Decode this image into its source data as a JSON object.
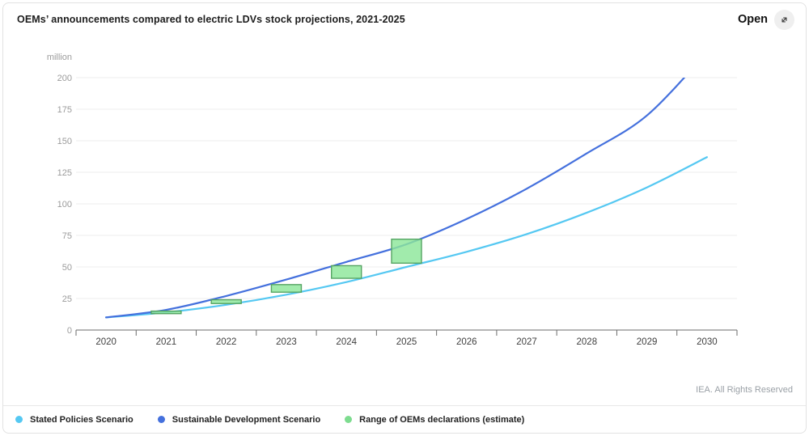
{
  "header": {
    "title": "OEMs’ announcements compared to electric LDVs stock projections, 2021-2025",
    "open_label": "Open",
    "open_icon": "expand-icon"
  },
  "footer": {
    "copyright": "IEA. All Rights Reserved"
  },
  "chart_data": {
    "type": "line",
    "title": "OEMs’ announcements compared to electric LDVs stock projections, 2021-2025",
    "unit_label": "million",
    "categories": [
      "2020",
      "2021",
      "2022",
      "2023",
      "2024",
      "2025",
      "2026",
      "2027",
      "2028",
      "2029",
      "2030"
    ],
    "ylim": [
      0,
      200
    ],
    "y_step": 25,
    "grid": "horizontal",
    "legend_position": "bottom",
    "axis_note": "Sustainable Development Scenario line is clipped at the 200 million axis maximum (reached between 2029 and 2030)",
    "series": [
      {
        "name": "Stated Policies Scenario",
        "color": "#55c8f2",
        "values": [
          10,
          14,
          20,
          28,
          38,
          50,
          62,
          76,
          93,
          113,
          137
        ]
      },
      {
        "name": "Sustainable Development Scenario",
        "color": "#4470dd",
        "values": [
          10,
          16,
          27,
          40,
          54,
          68,
          88,
          112,
          140,
          170,
          220
        ]
      }
    ],
    "range_series": {
      "name": "Range of OEMs declarations (estimate)",
      "color": "#7ddc8f",
      "fill": "#8ce69a",
      "stroke": "#55a463",
      "ranges": [
        {
          "year": "2021",
          "low": 13,
          "high": 15
        },
        {
          "year": "2022",
          "low": 21,
          "high": 24
        },
        {
          "year": "2023",
          "low": 30,
          "high": 36
        },
        {
          "year": "2024",
          "low": 41,
          "high": 51
        },
        {
          "year": "2025",
          "low": 53,
          "high": 72
        }
      ]
    },
    "axis_colors": {
      "grid": "#ededed",
      "axis_line": "#6b6b6b",
      "y_tick_text": "#9b9b9b",
      "x_tick_text": "#3f3f3f"
    }
  }
}
